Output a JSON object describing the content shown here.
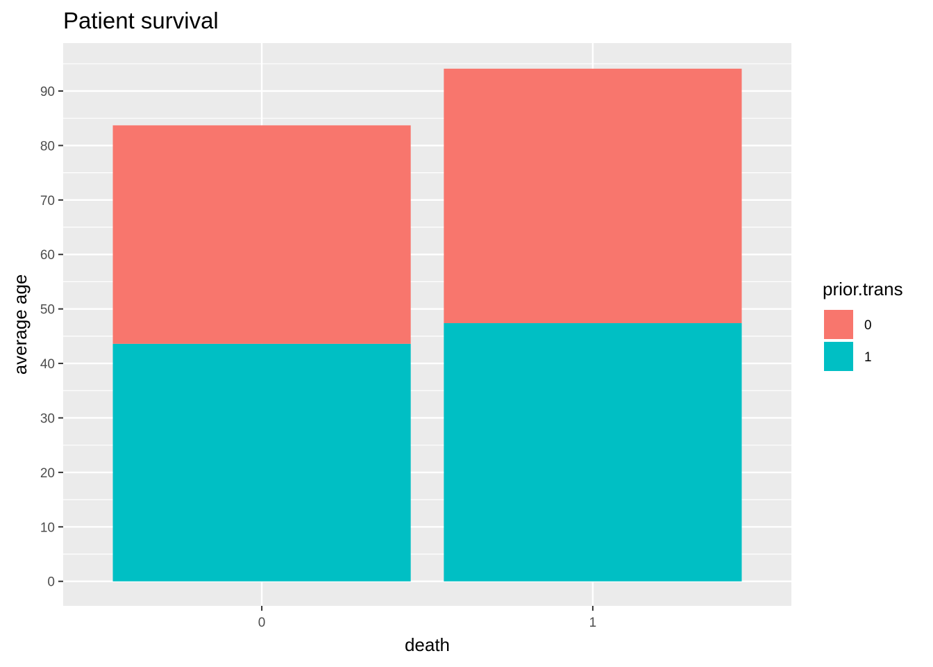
{
  "chart_data": {
    "type": "bar",
    "stacked": true,
    "title": "Patient survival",
    "xlabel": "death",
    "ylabel": "average age",
    "categories": [
      "0",
      "1"
    ],
    "series": [
      {
        "name": "0",
        "color": "#F8766D",
        "values": [
          40.1,
          46.7
        ]
      },
      {
        "name": "1",
        "color": "#00BFC4",
        "values": [
          43.6,
          47.4
        ]
      }
    ],
    "ylim": [
      -4.5,
      98.8
    ],
    "yticks": [
      0,
      10,
      20,
      30,
      40,
      50,
      60,
      70,
      80,
      90
    ],
    "yticks_labels": [
      "0",
      "10",
      "20",
      "30",
      "40",
      "50",
      "60",
      "70",
      "80",
      "90"
    ],
    "grid": true,
    "legend": {
      "title": "prior.trans",
      "position": "right",
      "order": [
        "0",
        "1"
      ]
    },
    "panel_color": "#EBEBEB",
    "gridline_color": "#FFFFFF"
  }
}
